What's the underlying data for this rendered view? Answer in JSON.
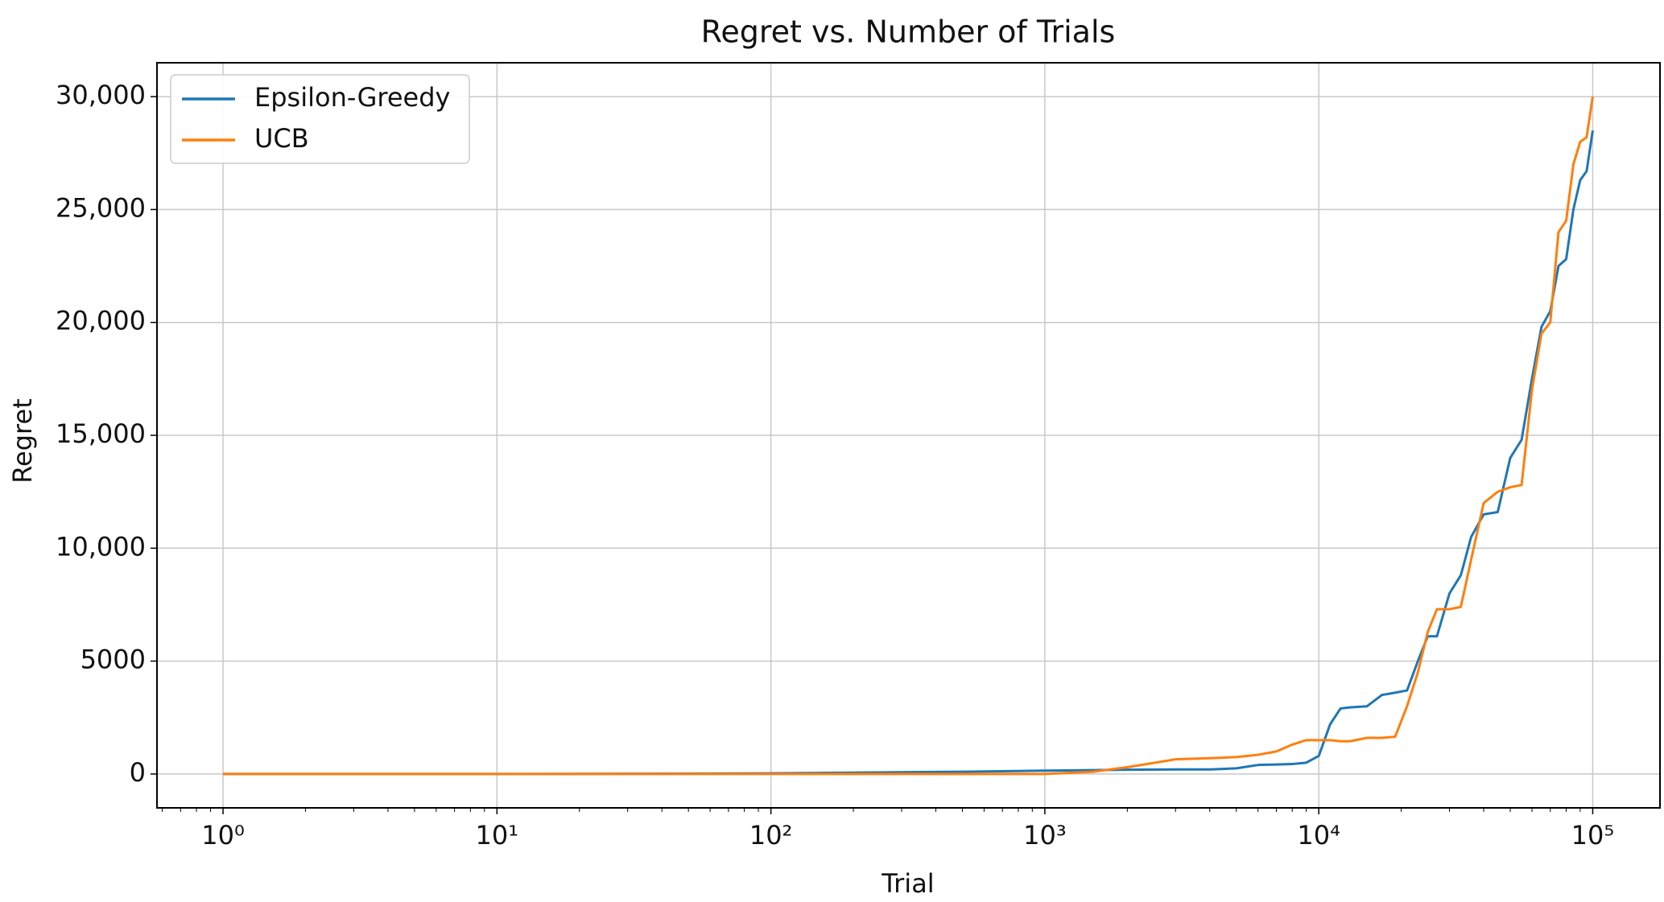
{
  "chart_data": {
    "type": "line",
    "title": "Regret vs. Number of Trials",
    "xlabel": "Trial",
    "ylabel": "Regret",
    "xscale": "log",
    "grid": true,
    "legend": "upper left",
    "xlim": [
      0.574,
      176000
    ],
    "ylim": [
      -1500,
      31500
    ],
    "xticks": [
      {
        "value": 1,
        "label": "10⁰"
      },
      {
        "value": 10,
        "label": "10¹"
      },
      {
        "value": 100,
        "label": "10²"
      },
      {
        "value": 1000,
        "label": "10³"
      },
      {
        "value": 10000,
        "label": "10⁴"
      },
      {
        "value": 100000,
        "label": "10⁵"
      }
    ],
    "yticks": [
      0,
      5000,
      {
        "value": 10000,
        "label": "10,000"
      },
      {
        "value": 15000,
        "label": "15,000"
      },
      {
        "value": 20000,
        "label": "20,000"
      },
      {
        "value": 25000,
        "label": "25,000"
      },
      {
        "value": 30000,
        "label": "30,000"
      }
    ],
    "x": [
      1,
      2,
      5,
      10,
      20,
      50,
      100,
      200,
      500,
      1000,
      1500,
      2000,
      3000,
      4000,
      5000,
      6000,
      7000,
      8000,
      9000,
      10000,
      11000,
      12000,
      13000,
      15000,
      17000,
      19000,
      21000,
      23000,
      25000,
      27000,
      30000,
      33000,
      36000,
      40000,
      45000,
      50000,
      55000,
      60000,
      65000,
      70000,
      75000,
      80000,
      85000,
      90000,
      95000,
      100000
    ],
    "series": [
      {
        "name": "Epsilon-Greedy",
        "color": "#1f77b4",
        "values": [
          0,
          0,
          0,
          0,
          5,
          15,
          30,
          60,
          100,
          150,
          170,
          190,
          200,
          200,
          250,
          400,
          420,
          440,
          500,
          800,
          2200,
          2900,
          2950,
          3000,
          3500,
          3600,
          3700,
          5000,
          6100,
          6100,
          8000,
          8800,
          10500,
          11500,
          11600,
          14000,
          14800,
          17500,
          19800,
          20500,
          22500,
          22800,
          25000,
          26300,
          26700,
          28500
        ]
      },
      {
        "name": "UCB",
        "color": "#ff7f0e",
        "values": [
          0,
          0,
          0,
          0,
          0,
          0,
          0,
          0,
          0,
          0,
          100,
          300,
          650,
          700,
          750,
          850,
          1000,
          1300,
          1500,
          1500,
          1500,
          1450,
          1450,
          1600,
          1600,
          1650,
          3000,
          4500,
          6300,
          7300,
          7300,
          7400,
          9500,
          12000,
          12500,
          12700,
          12800,
          17000,
          19500,
          20000,
          24000,
          24500,
          27000,
          28000,
          28200,
          30000
        ]
      }
    ]
  }
}
